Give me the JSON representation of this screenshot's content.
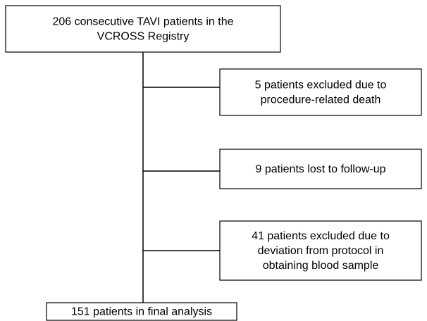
{
  "nodes": [
    {
      "lines": [
        "206 consecutive TAVI patients in the",
        "VCROSS Registry"
      ]
    },
    {
      "lines": [
        "5 patients excluded due to",
        "procedure-related death"
      ]
    },
    {
      "lines": [
        "9 patients lost to follow-up"
      ]
    },
    {
      "lines": [
        "41 patients excluded due to",
        "deviation from protocol in",
        "obtaining blood sample"
      ]
    },
    {
      "lines": [
        "151 patients in final analysis"
      ]
    }
  ]
}
